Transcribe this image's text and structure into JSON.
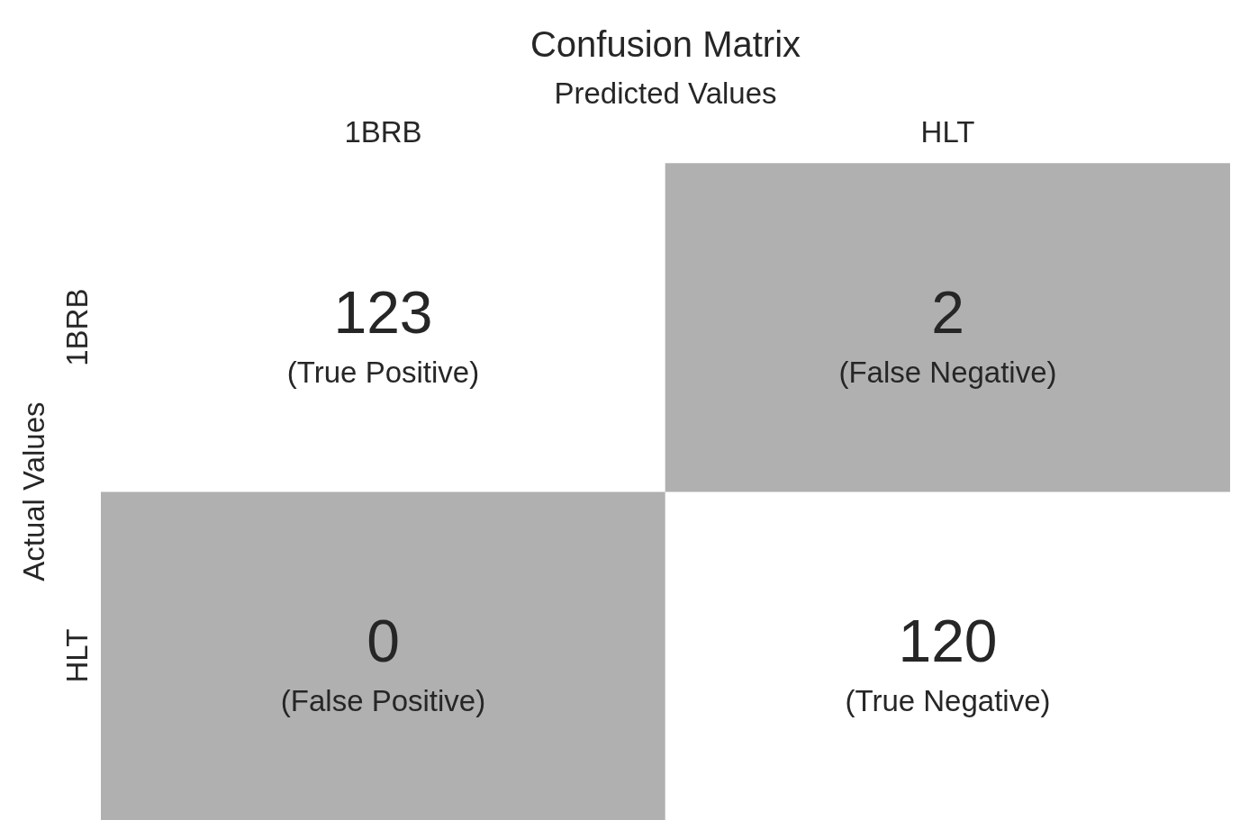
{
  "chart_data": {
    "type": "heatmap",
    "title": "Confusion Matrix",
    "xlabel": "Predicted Values",
    "ylabel": "Actual Values",
    "categories": [
      "1BRB",
      "HLT"
    ],
    "y_categories": [
      "1BRB",
      "HLT"
    ],
    "cells": [
      [
        123,
        2
      ],
      [
        0,
        120
      ]
    ],
    "data_labels": true,
    "annotations": [
      "(True Positive)",
      "(False Negative)",
      "(False Positive)",
      "(True Negative)"
    ],
    "colors": [
      "#ffffff",
      "#b0b0b0",
      "#b0b0b0",
      "#ffffff"
    ]
  }
}
